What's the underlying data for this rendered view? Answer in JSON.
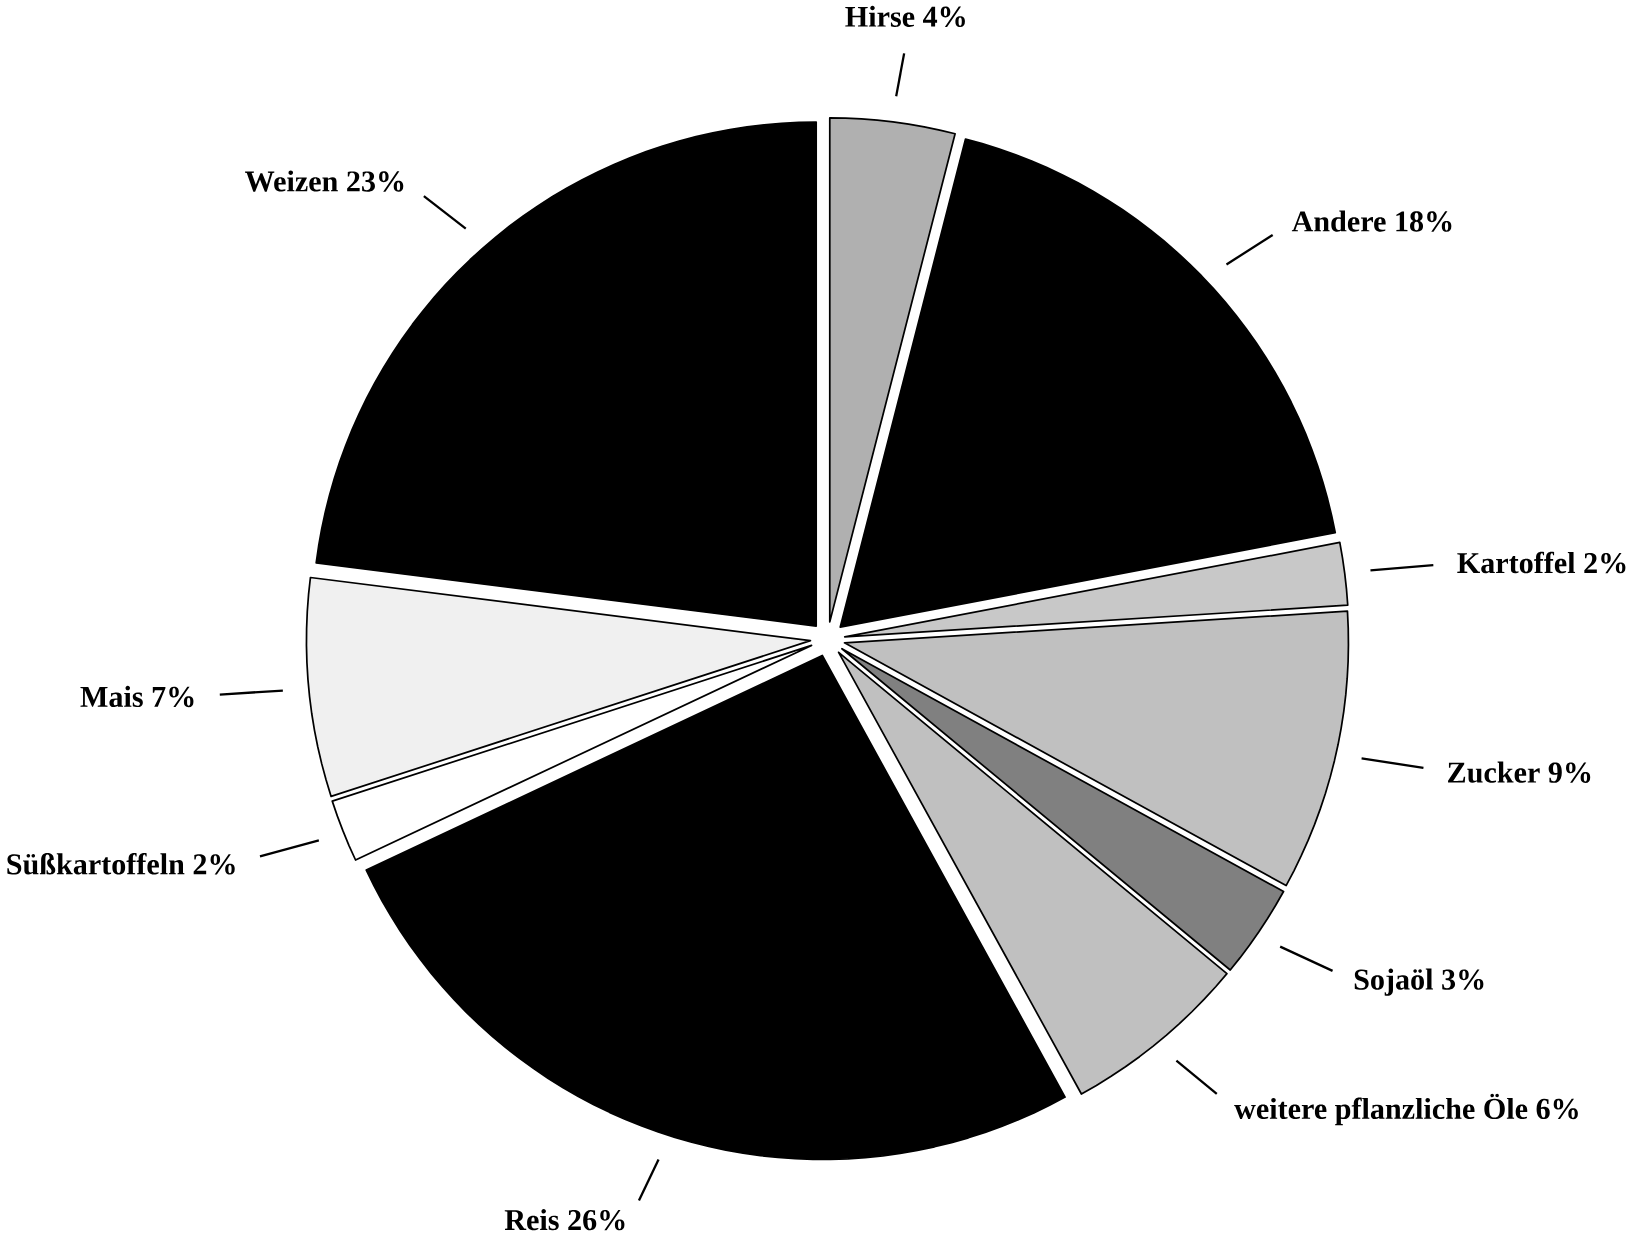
{
  "chart_data": {
    "type": "pie",
    "categories": [
      "Hirse",
      "Andere",
      "Kartoffel",
      "Zucker",
      "Sojaöl",
      "weitere pflanzliche Öle",
      "Reis",
      "Süßkartoffeln",
      "Mais",
      "Weizen"
    ],
    "values": [
      4,
      18,
      2,
      9,
      3,
      6,
      26,
      2,
      7,
      23
    ],
    "value_labels": [
      "4%",
      "18%",
      "2%",
      "9%",
      "3%",
      "6%",
      "26%",
      "2%",
      "7%",
      "23%"
    ],
    "colors": [
      "#b0b0b0",
      "#000000",
      "#c8c8c8",
      "#c0c0c0",
      "#808080",
      "#c0c0c0",
      "#000000",
      "#ffffff",
      "#f0f0f0",
      "#000000"
    ]
  }
}
